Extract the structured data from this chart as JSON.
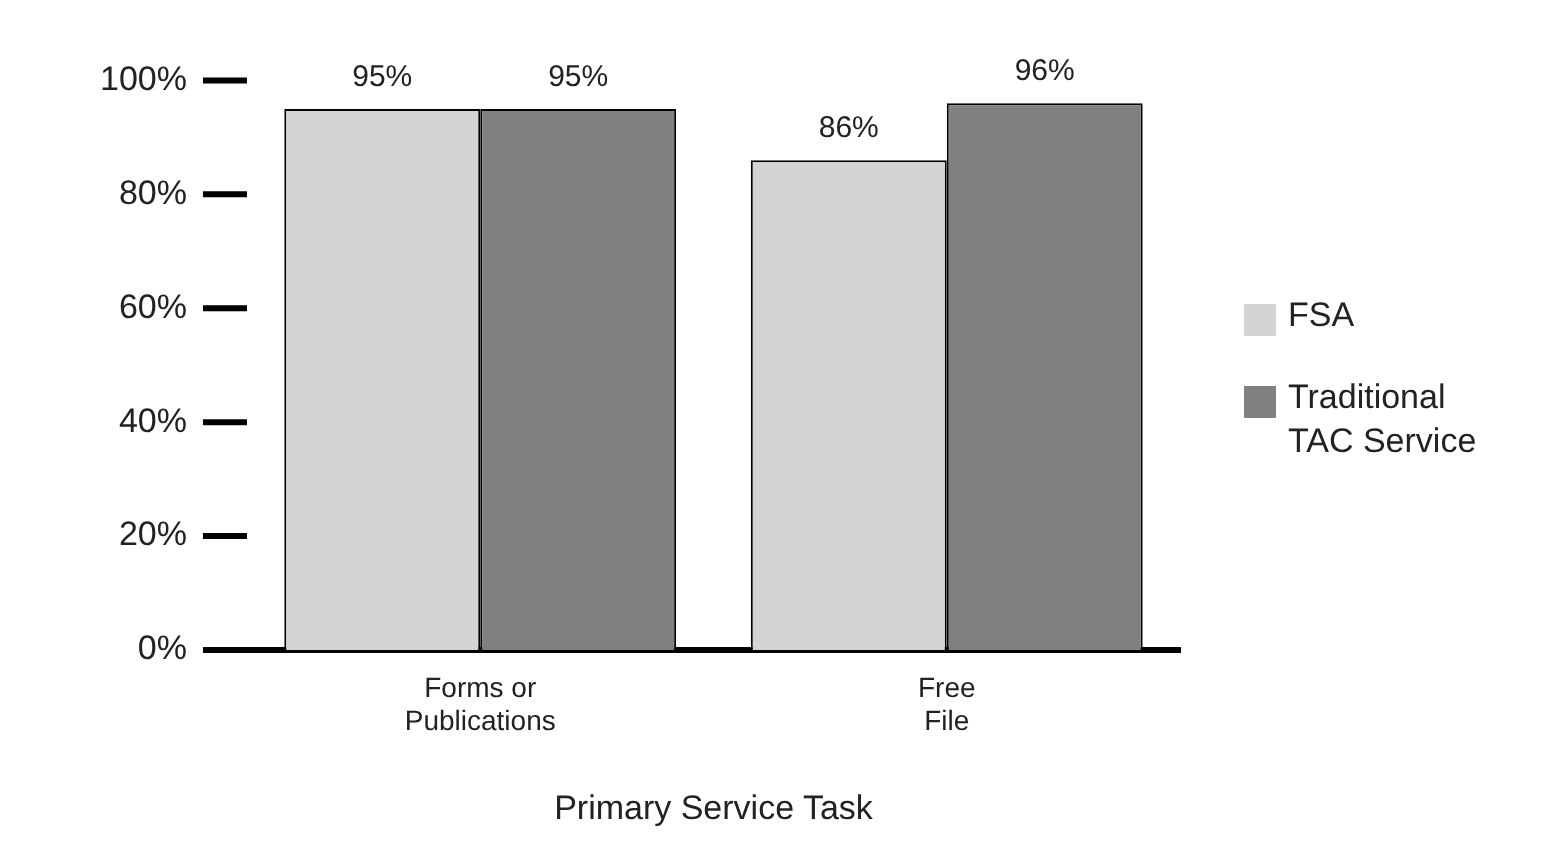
{
  "chart_data": {
    "type": "bar",
    "xlabel": "Primary Service Task",
    "categories": [
      "Forms or Publications",
      "Free File"
    ],
    "series": [
      {
        "name": "FSA",
        "color": "#d4d4d4",
        "values": [
          95,
          86
        ],
        "value_labels": [
          "95%",
          "86%"
        ]
      },
      {
        "name": "Traditional TAC Service",
        "color": "#808083",
        "values": [
          95,
          96
        ],
        "value_labels": [
          "95%",
          "96%"
        ]
      }
    ],
    "ylim": [
      0,
      100
    ],
    "yticks": [
      {
        "value": 0,
        "label": "0%"
      },
      {
        "value": 20,
        "label": "20%"
      },
      {
        "value": 40,
        "label": "40%"
      },
      {
        "value": 60,
        "label": "60%"
      },
      {
        "value": 80,
        "label": "80%"
      },
      {
        "value": 100,
        "label": "100%"
      }
    ],
    "grid": false,
    "legend": "right"
  }
}
